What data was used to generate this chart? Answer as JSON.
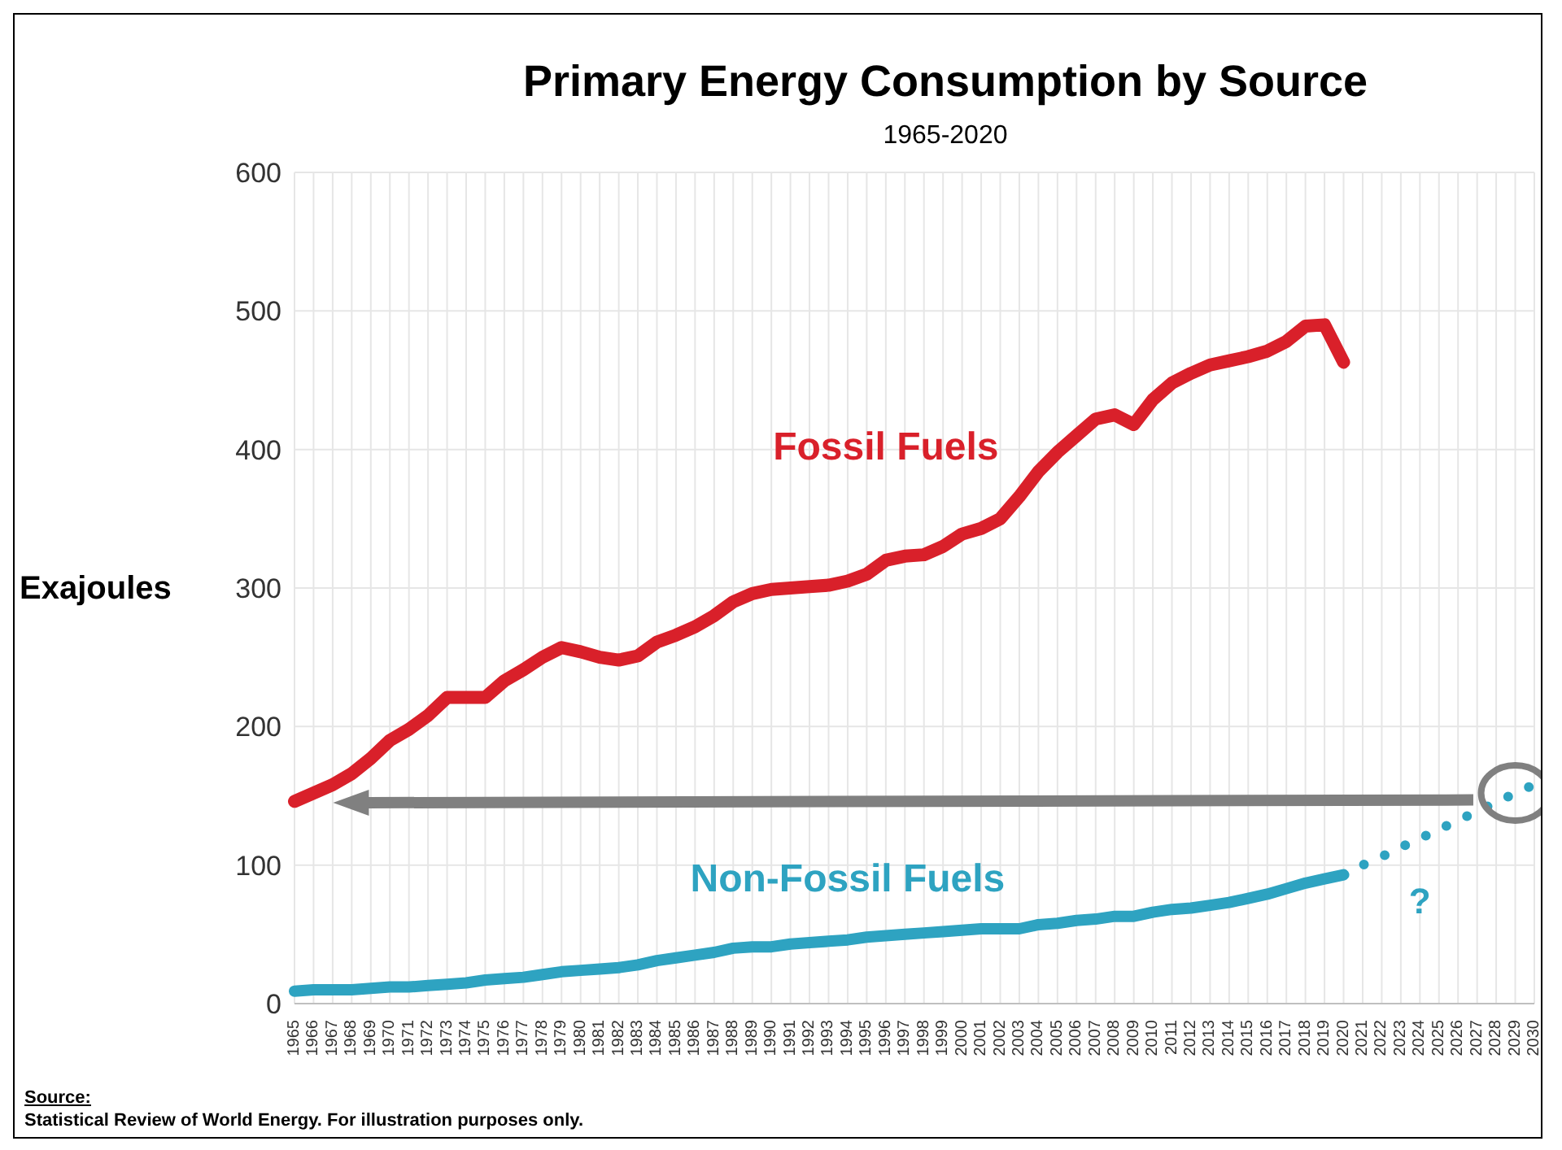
{
  "chart_data": {
    "type": "line",
    "title": "Primary Energy Consumption by Source",
    "subtitle": "1965-2020",
    "ylabel": "Exajoules",
    "categories": [
      "1965",
      "1966",
      "1967",
      "1968",
      "1969",
      "1970",
      "1971",
      "1972",
      "1973",
      "1974",
      "1975",
      "1976",
      "1977",
      "1978",
      "1979",
      "1980",
      "1981",
      "1982",
      "1983",
      "1984",
      "1985",
      "1986",
      "1987",
      "1988",
      "1989",
      "1990",
      "1991",
      "1992",
      "1993",
      "1994",
      "1995",
      "1996",
      "1997",
      "1998",
      "1999",
      "2000",
      "2001",
      "2002",
      "2003",
      "2004",
      "2005",
      "2006",
      "2007",
      "2008",
      "2009",
      "2010",
      "2011",
      "2012",
      "2013",
      "2014",
      "2015",
      "2016",
      "2017",
      "2018",
      "2019",
      "2020",
      "2021",
      "2022",
      "2023",
      "2024",
      "2025",
      "2026",
      "2027",
      "2028",
      "2029",
      "2030"
    ],
    "series": [
      {
        "name": "Fossil Fuels",
        "color": "#d9202a",
        "line_style": "solid",
        "values": [
          146,
          152,
          158,
          166,
          177,
          190,
          198,
          208,
          221,
          221,
          221,
          233,
          241,
          250,
          257,
          254,
          250,
          248,
          251,
          261,
          266,
          272,
          280,
          290,
          296,
          299,
          300,
          301,
          302,
          305,
          310,
          320,
          323,
          324,
          330,
          339,
          343,
          350,
          366,
          384,
          398,
          410,
          422,
          425,
          418,
          436,
          448,
          455,
          461,
          464,
          467,
          471,
          478,
          489,
          490,
          463,
          null,
          null,
          null,
          null,
          null,
          null,
          null,
          null,
          null,
          null
        ]
      },
      {
        "name": "Non-Fossil Fuels",
        "color": "#2ea3c1",
        "line_style": "solid",
        "values": [
          9,
          10,
          10,
          10,
          11,
          12,
          12,
          13,
          14,
          15,
          17,
          18,
          19,
          21,
          23,
          24,
          25,
          26,
          28,
          31,
          33,
          35,
          37,
          40,
          41,
          41,
          43,
          44,
          45,
          46,
          48,
          49,
          50,
          51,
          52,
          53,
          54,
          54,
          54,
          57,
          58,
          60,
          61,
          63,
          63,
          66,
          68,
          69,
          71,
          73,
          76,
          79,
          83,
          87,
          90,
          93,
          null,
          null,
          null,
          null,
          null,
          null,
          null,
          null,
          null,
          null
        ]
      },
      {
        "color": "#2ea3c1",
        "line_style": "dotted",
        "values": [
          null,
          null,
          null,
          null,
          null,
          null,
          null,
          null,
          null,
          null,
          null,
          null,
          null,
          null,
          null,
          null,
          null,
          null,
          null,
          null,
          null,
          null,
          null,
          null,
          null,
          null,
          null,
          null,
          null,
          null,
          null,
          null,
          null,
          null,
          null,
          null,
          null,
          null,
          null,
          null,
          null,
          null,
          null,
          null,
          null,
          null,
          null,
          null,
          null,
          null,
          null,
          null,
          null,
          null,
          null,
          93,
          100,
          106,
          113,
          119,
          126,
          132,
          139,
          145,
          152,
          158
        ]
      }
    ],
    "ylim": [
      0,
      600
    ],
    "yticks": [
      0,
      100,
      200,
      300,
      400,
      500,
      600
    ],
    "grid": true,
    "marker": "none",
    "annotations": [
      "?",
      "Source:",
      "Statistical Review of World Energy. For illustration purposes only."
    ]
  }
}
